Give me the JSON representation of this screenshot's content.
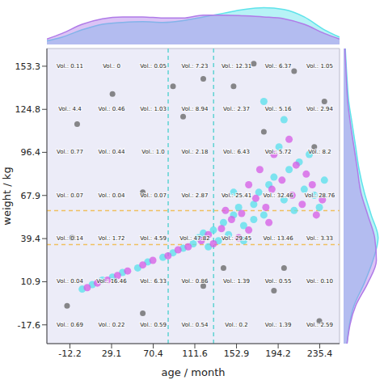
{
  "chart_data": {
    "type": "scatter",
    "x_label": "age / month",
    "y_label": "weight / kg",
    "xlim": [
      -35,
      255
    ],
    "ylim": [
      -30,
      165
    ],
    "xticks": [
      -12.2,
      29.1,
      70.4,
      111.6,
      152.9,
      194.2,
      235.4
    ],
    "yticks": [
      -17.6,
      10.9,
      39.4,
      67.9,
      96.4,
      124.8,
      153.3
    ],
    "grid": false,
    "series": [
      {
        "color": "#57e0ec",
        "x": [
          0,
          10,
          20,
          30,
          40,
          55,
          65,
          80,
          90,
          100,
          110,
          115,
          120,
          130,
          140,
          150,
          155,
          160,
          170,
          175,
          180,
          185,
          190,
          200,
          205,
          210,
          215,
          220,
          230,
          235,
          240,
          195,
          160,
          145,
          125,
          135,
          225,
          150,
          170,
          200,
          180
        ],
        "y": [
          6,
          9,
          12,
          14,
          17,
          20,
          24,
          27,
          30,
          33,
          36,
          40,
          43,
          45,
          50,
          55,
          60,
          48,
          62,
          70,
          55,
          75,
          80,
          65,
          85,
          58,
          90,
          72,
          68,
          60,
          78,
          100,
          38,
          42,
          34,
          38,
          95,
          70,
          52,
          118,
          130
        ]
      },
      {
        "color": "#d65be6",
        "x": [
          5,
          15,
          25,
          35,
          45,
          60,
          70,
          85,
          95,
          105,
          118,
          125,
          138,
          148,
          158,
          165,
          172,
          182,
          188,
          198,
          208,
          212,
          218,
          228,
          238,
          190,
          176,
          142,
          130,
          155,
          205,
          222,
          165,
          185,
          232
        ],
        "y": [
          7,
          10,
          12,
          15,
          18,
          22,
          25,
          28,
          32,
          34,
          38,
          42,
          46,
          52,
          56,
          45,
          66,
          60,
          72,
          78,
          68,
          88,
          62,
          75,
          65,
          95,
          85,
          58,
          36,
          40,
          105,
          82,
          75,
          50,
          55
        ]
      },
      {
        "color": "#6b6b6b",
        "x": [
          -5,
          -15,
          230,
          60,
          150,
          210,
          120,
          240,
          100,
          30,
          180,
          60,
          200,
          190,
          140,
          90,
          -10,
          235,
          120,
          170
        ],
        "y": [
          115,
          -5,
          100,
          70,
          140,
          150,
          145,
          130,
          120,
          135,
          110,
          -10,
          20,
          5,
          20,
          140,
          40,
          -15,
          8,
          155
        ]
      }
    ],
    "reference_lines": [
      {
        "axis": "x",
        "value": 85.2,
        "color": "#5fd3d3",
        "line_style": "dashed"
      },
      {
        "axis": "x",
        "value": 130.2,
        "color": "#5fd3d3",
        "line_style": "dashed"
      },
      {
        "axis": "y",
        "value": 57.9,
        "color": "#f0c060",
        "line_style": "dashed"
      },
      {
        "axis": "y",
        "value": 35.5,
        "color": "#f0c060",
        "line_style": "dashed"
      }
    ],
    "cell_labels": {
      "x": [
        -12.2,
        29.1,
        70.4,
        111.6,
        152.9,
        194.2,
        235.4
      ],
      "y": [
        153.3,
        124.8,
        96.4,
        67.9,
        39.4,
        10.9,
        -17.6
      ],
      "labels": [
        [
          "Vol.: 0.11",
          "Vol.: 0",
          "Vol.: 0.05",
          "Vol.: 7.23",
          "Vol.: 12.31",
          "Vol.: 6.37",
          "Vol.: 1.05"
        ],
        [
          "Vol.: 4.4",
          "Vol.: 0.46",
          "Vol.: 1.03",
          "Vol.: 8.94",
          "Vol.: 2.37",
          "Vol.: 5.16",
          "Vol.: 2.94"
        ],
        [
          "Vol.: 0.77",
          "Vol.: 0.44",
          "Vol.: 1.0",
          "Vol.: 2.18",
          "Vol.: 6.43",
          "Vol.: 5.72",
          "Vol.: 8.2"
        ],
        [
          "Vol.: 0.07",
          "Vol.: 0.04",
          "Vol.: 0.07",
          "Vol.: 2.87",
          "Vol.: 25.41",
          "Vol.: 32.46",
          "Vol.: 28.76"
        ],
        [
          "Vol.: 0.14",
          "Vol.: 1.72",
          "Vol.: 4.59",
          "Vol.: 47.82",
          "Vol.: 29.45",
          "Vol.: 13.46",
          "Vol.: 3.33"
        ],
        [
          "Vol.: 0.04",
          "Vol.: 16.46",
          "Vol.: 6.33",
          "Vol.: 0.86",
          "Vol.: 1.39",
          "Vol.: 0.55",
          "Vol.: 0.10"
        ],
        [
          "Vol.: 0.69",
          "Vol.: 0.22",
          "Vol.: 0.59",
          "Vol.: 0.54",
          "Vol.: 0.2",
          "Vol.: 1.39",
          "Vol.: 2.59"
        ]
      ]
    },
    "marginal_x": {
      "x": [
        -35,
        -20,
        0,
        20,
        40,
        60,
        80,
        100,
        120,
        140,
        160,
        180,
        200,
        220,
        240,
        255
      ],
      "ylim": [
        0,
        1.1
      ],
      "series": [
        {
          "color": "#5fe3ea",
          "values": [
            0.1,
            0.2,
            0.4,
            0.55,
            0.6,
            0.62,
            0.6,
            0.65,
            0.75,
            0.85,
            0.95,
            1.0,
            0.95,
            0.75,
            0.4,
            0.2
          ]
        },
        {
          "color": "#b07be8",
          "values": [
            0.15,
            0.3,
            0.55,
            0.7,
            0.75,
            0.75,
            0.72,
            0.72,
            0.8,
            0.8,
            0.78,
            0.75,
            0.7,
            0.55,
            0.3,
            0.15
          ]
        }
      ]
    },
    "marginal_y": {
      "y": [
        -30,
        -5,
        10,
        25,
        40,
        55,
        70,
        85,
        100,
        115,
        130,
        145,
        165
      ],
      "xlim": [
        0,
        1.1
      ],
      "series": [
        {
          "color": "#5fe3ea",
          "values": [
            0.1,
            0.3,
            0.6,
            0.85,
            1.0,
            0.8,
            0.6,
            0.45,
            0.35,
            0.25,
            0.15,
            0.1,
            0.05
          ]
        },
        {
          "color": "#b07be8",
          "values": [
            0.1,
            0.35,
            0.7,
            0.95,
            0.9,
            0.7,
            0.5,
            0.4,
            0.3,
            0.2,
            0.12,
            0.08,
            0.04
          ]
        }
      ]
    }
  }
}
